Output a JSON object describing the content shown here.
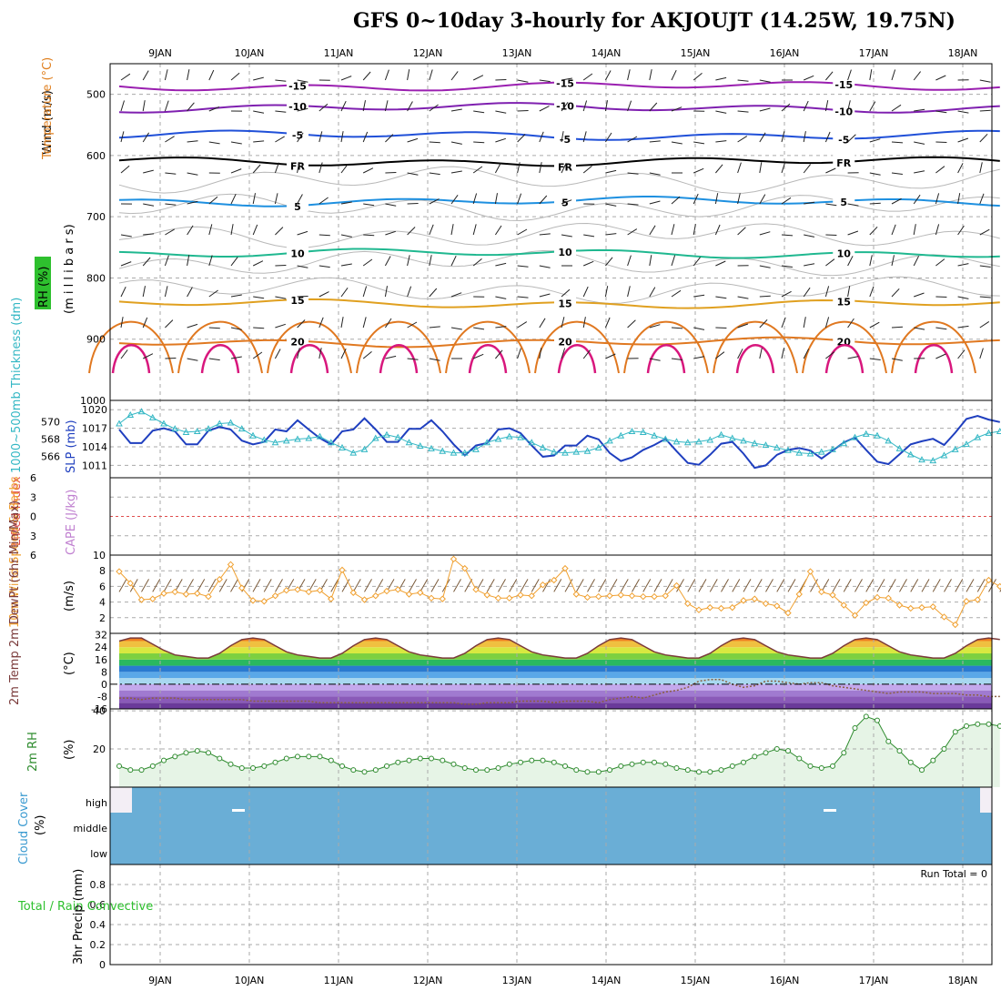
{
  "title": "GFS 0~10day 3-hourly for AKJOUJT (14.25W, 19.75N)",
  "colors": {
    "grid": "#aaaaaa",
    "slp": "#1f3fbf",
    "thickness": "#33b7c4",
    "wind10m": "#f0a030",
    "rh2m": "#2e8b2e",
    "cloud": "#6aaed6",
    "cape_zero": "#e05050"
  },
  "chart_data": [
    {
      "type": "line",
      "name": "upper-air",
      "x_dates": [
        "9JAN",
        "10JAN",
        "11JAN",
        "12JAN",
        "13JAN",
        "14JAN",
        "15JAN",
        "16JAN",
        "17JAN",
        "18JAN"
      ],
      "ylabel_parts": [
        "Wind (m/s)",
        "Temperature (°C)",
        "RH (%)",
        "(m i l l i b a r s)"
      ],
      "yticks": [
        500,
        600,
        700,
        800,
        900,
        1000
      ],
      "ylim": [
        450,
        1000
      ],
      "isotherms": [
        {
          "label": "-15",
          "level": 487,
          "color": "#9a1fb0"
        },
        {
          "label": "-10",
          "level": 522,
          "color": "#7f20b0"
        },
        {
          "label": "-5",
          "level": 567,
          "color": "#2050d8"
        },
        {
          "label": "FR",
          "level": 610,
          "color": "#000000"
        },
        {
          "label": "5",
          "level": 675,
          "color": "#1e90e0"
        },
        {
          "label": "10",
          "level": 760,
          "color": "#20b890"
        },
        {
          "label": "15",
          "level": 842,
          "color": "#e0a020"
        },
        {
          "label": "20",
          "level": 905,
          "color": "#e07820"
        }
      ]
    },
    {
      "type": "line",
      "name": "slp-thickness",
      "ylabel_left": "1000~500mb Thickness (dm)",
      "ylabel_right": "SLP (mb)",
      "yticks_left": [
        566,
        568,
        570
      ],
      "yticks_right": [
        1011,
        1014,
        1017,
        1020
      ],
      "ylim_right": [
        1009,
        1020
      ],
      "series": [
        {
          "name": "SLP (mb)",
          "values": [
            1016.8,
            1014.6,
            1014.6,
            1016.6,
            1017.0,
            1016.5,
            1014.4,
            1014.4,
            1016.6,
            1017.2,
            1016.8,
            1015.0,
            1014.4,
            1014.8,
            1016.8,
            1016.5,
            1018.3,
            1016.8,
            1015.4,
            1014.4,
            1016.5,
            1016.8,
            1018.6,
            1016.8,
            1014.8,
            1014.8,
            1016.9,
            1016.9,
            1018.3,
            1016.5,
            1014.4,
            1012.6,
            1014.2,
            1014.6,
            1016.8,
            1017.0,
            1016.2,
            1014.2,
            1012.4,
            1012.6,
            1014.2,
            1014.2,
            1015.8,
            1015.2,
            1013.0,
            1011.7,
            1012.3,
            1013.5,
            1014.3,
            1015.3,
            1013.3,
            1011.4,
            1011.1,
            1012.7,
            1014.5,
            1014.8,
            1012.9,
            1010.6,
            1011.0,
            1012.7,
            1013.5,
            1013.8,
            1013.4,
            1012.1,
            1013.4,
            1014.7,
            1015.5,
            1013.5,
            1011.6,
            1011.2,
            1012.8,
            1014.4,
            1014.9,
            1015.3,
            1014.3,
            1016.3,
            1018.5,
            1019.0,
            1018.4,
            1018.0
          ]
        },
        {
          "name": "1000~500mb Thickness (dm)",
          "values": [
            569.8,
            570.8,
            571.2,
            570.5,
            569.8,
            569.2,
            568.8,
            568.9,
            569.2,
            569.8,
            569.9,
            569.2,
            568.4,
            567.9,
            567.6,
            567.8,
            568.0,
            568.1,
            568.3,
            567.6,
            567.0,
            566.4,
            566.8,
            568.1,
            568.5,
            568.2,
            567.6,
            567.2,
            566.9,
            566.6,
            566.4,
            566.4,
            566.8,
            567.6,
            568.0,
            568.3,
            568.2,
            567.6,
            567.0,
            566.5,
            566.4,
            566.5,
            566.6,
            567.0,
            567.8,
            568.4,
            568.9,
            568.8,
            568.4,
            568.0,
            567.7,
            567.6,
            567.7,
            567.9,
            568.5,
            568.1,
            567.8,
            567.5,
            567.3,
            567.0,
            566.7,
            566.4,
            566.3,
            566.5,
            566.8,
            567.5,
            568.2,
            568.6,
            568.4,
            567.8,
            566.9,
            566.2,
            565.6,
            565.5,
            566.1,
            566.8,
            567.4,
            568.2,
            568.7,
            568.9
          ]
        }
      ]
    },
    {
      "type": "line",
      "name": "instability",
      "ylabel_left": "Lifted Index",
      "ylabel_right": "CAPE (J/kg)",
      "yticks": [
        -6,
        -3,
        0,
        3,
        6
      ],
      "ytick_labels": [
        "6",
        "3",
        "0",
        "3",
        "6"
      ],
      "ylim": [
        -6,
        6
      ]
    },
    {
      "type": "line",
      "name": "wind10m",
      "ylabel_left": "10m Wind Speed & Barbs",
      "ylabel_right": "(m/s)",
      "yticks": [
        2,
        4,
        6,
        8,
        10
      ],
      "ylim": [
        0,
        10
      ],
      "series": [
        {
          "name": "10m Wind Speed",
          "values": [
            7.9,
            6.4,
            4.3,
            4.4,
            5.1,
            5.3,
            5.0,
            5.1,
            4.7,
            6.9,
            8.8,
            5.8,
            4.2,
            4.1,
            4.8,
            5.5,
            5.6,
            5.3,
            5.5,
            4.4,
            8.1,
            5.2,
            4.3,
            4.8,
            5.4,
            5.6,
            5.0,
            5.2,
            4.5,
            4.4,
            9.5,
            8.3,
            5.6,
            4.9,
            4.5,
            4.5,
            4.9,
            4.8,
            6.2,
            6.8,
            8.3,
            5.0,
            4.6,
            4.7,
            4.8,
            4.9,
            4.8,
            4.7,
            4.7,
            4.8,
            6.1,
            3.8,
            3.0,
            3.3,
            3.2,
            3.3,
            4.2,
            4.4,
            3.8,
            3.5,
            2.6,
            5.0,
            7.9,
            5.3,
            4.9,
            3.6,
            2.3,
            3.9,
            4.6,
            4.5,
            3.6,
            3.2,
            3.3,
            3.4,
            2.1,
            1.1,
            4.1,
            4.3,
            6.8,
            6.0
          ]
        }
      ]
    },
    {
      "type": "area",
      "name": "temperature2m",
      "ylabel_left": "2m Temp 2m DewPt (6hr Min/Max)",
      "ylabel_right": "(°C)",
      "yticks": [
        -16,
        -8,
        0,
        8,
        16,
        24,
        32
      ],
      "ylim": [
        -16,
        33
      ],
      "series": [
        {
          "name": "2m Temp",
          "values": [
            28,
            30,
            30,
            26,
            22,
            19,
            18,
            17,
            17,
            20,
            25,
            29,
            30,
            29,
            25,
            21,
            19,
            18,
            17,
            17,
            20,
            25,
            29,
            30,
            29,
            25,
            21,
            19,
            18,
            17,
            17,
            20,
            25,
            29,
            30,
            29,
            25,
            21,
            19,
            18,
            17,
            17,
            20,
            25,
            29,
            30,
            29,
            25,
            21,
            19,
            18,
            17,
            17,
            20,
            25,
            29,
            30,
            29,
            25,
            21,
            19,
            18,
            17,
            17,
            20,
            25,
            29,
            30,
            29,
            25,
            21,
            19,
            18,
            17,
            17,
            20,
            25,
            29,
            30,
            29
          ]
        },
        {
          "name": "2m DewPt",
          "values": [
            -9,
            -9,
            -10,
            -9,
            -9,
            -9,
            -10,
            -10,
            -10,
            -10,
            -10,
            -10,
            -11,
            -11,
            -11,
            -11,
            -11,
            -11,
            -12,
            -12,
            -12,
            -12,
            -12,
            -12,
            -12,
            -12,
            -12,
            -12,
            -12,
            -12,
            -12,
            -13,
            -13,
            -12,
            -12,
            -12,
            -11,
            -11,
            -11,
            -12,
            -11,
            -11,
            -11,
            -12,
            -10,
            -9,
            -8,
            -9,
            -7,
            -5,
            -4,
            -2,
            2,
            3,
            3,
            0,
            -2,
            -1,
            2,
            2,
            1,
            0,
            1,
            1,
            -1,
            -2,
            -3,
            -4,
            -5,
            -6,
            -5,
            -5,
            -5,
            -6,
            -6,
            -6,
            -7,
            -7,
            -8,
            -8
          ]
        }
      ]
    },
    {
      "type": "area",
      "name": "rh2m",
      "ylabel_left": "2m RH",
      "ylabel_right": "(%)",
      "yticks": [
        20,
        40
      ],
      "ylim": [
        0,
        40
      ],
      "series": [
        {
          "name": "2m RH",
          "values": [
            11,
            9,
            9,
            11,
            14,
            16,
            18,
            19,
            18,
            15,
            12,
            10,
            10,
            11,
            13,
            15,
            16,
            16,
            16,
            14,
            11,
            9,
            8,
            9,
            11,
            13,
            14,
            15,
            15,
            14,
            12,
            10,
            9,
            9,
            10,
            12,
            13,
            14,
            14,
            13,
            11,
            9,
            8,
            8,
            9,
            11,
            12,
            13,
            13,
            12,
            10,
            9,
            8,
            8,
            9,
            11,
            13,
            16,
            18,
            20,
            19,
            15,
            11,
            10,
            11,
            18,
            31,
            37,
            35,
            24,
            19,
            13,
            9,
            14,
            20,
            29,
            32,
            33,
            33,
            32
          ]
        }
      ]
    },
    {
      "type": "area",
      "name": "cloud",
      "ylabel_left": "Cloud Cover",
      "ylabel_right": "(%)",
      "levels": [
        "high",
        "middle",
        "low"
      ]
    },
    {
      "type": "bar",
      "name": "precip",
      "ylabel_left": "Total / Rain Convective",
      "ylabel_right": "3hr Precip (mm)",
      "yticks": [
        0,
        0.2,
        0.4,
        0.6,
        0.8
      ],
      "ylim": [
        0,
        1
      ],
      "run_total": "Run Total = 0"
    }
  ]
}
